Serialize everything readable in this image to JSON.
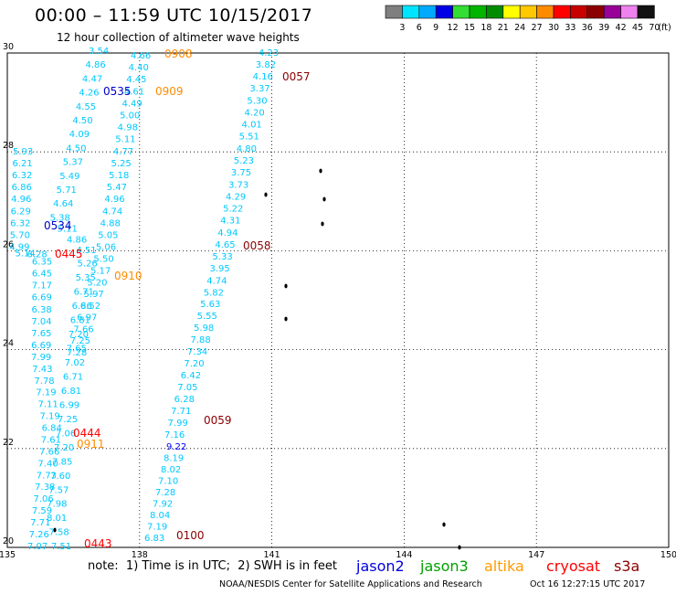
{
  "header": {
    "title": "00:00 – 11:59 UTC 10/15/2017",
    "subtitle": "12 hour collection of altimeter wave heights"
  },
  "colorbar": {
    "unit_label": "(ft)",
    "bins": [
      {
        "label": "3",
        "color": "#7f7f7f"
      },
      {
        "label": "6",
        "color": "#00e5ff"
      },
      {
        "label": "9",
        "color": "#00aaff"
      },
      {
        "label": "12",
        "color": "#0000e6"
      },
      {
        "label": "15",
        "color": "#33dd33"
      },
      {
        "label": "18",
        "color": "#00b400"
      },
      {
        "label": "21",
        "color": "#008c00"
      },
      {
        "label": "24",
        "color": "#ffff00"
      },
      {
        "label": "27",
        "color": "#ffc800"
      },
      {
        "label": "30",
        "color": "#ff8c00"
      },
      {
        "label": "33",
        "color": "#ff0000"
      },
      {
        "label": "36",
        "color": "#c80000"
      },
      {
        "label": "39",
        "color": "#8b0000"
      },
      {
        "label": "42",
        "color": "#990099"
      },
      {
        "label": "45",
        "color": "#ee82ee"
      },
      {
        "label": "70",
        "color": "#111111"
      }
    ]
  },
  "map": {
    "lon_ticks": [
      "135",
      "138",
      "141",
      "144",
      "147",
      "150"
    ],
    "lat_ticks": [
      "20",
      "22",
      "24",
      "26",
      "28",
      "30"
    ],
    "lon_range": [
      135,
      150
    ],
    "lat_range": [
      20,
      30
    ],
    "colors": {
      "light": "#00c8ff",
      "mid": "#0000ff",
      "grid": "#000000"
    },
    "tracks": [
      {
        "id": "A",
        "labels": [
          [
            "5.93",
            "light"
          ],
          [
            "6.21",
            "light"
          ],
          [
            "6.32",
            "light"
          ],
          [
            "6.86",
            "light"
          ],
          [
            "4.96",
            "light"
          ],
          [
            "6.29",
            "light"
          ],
          [
            "6.32",
            "light"
          ],
          [
            "5.70",
            "light"
          ],
          [
            "4.99",
            "light"
          ],
          [
            "5.14",
            "light"
          ],
          [
            "6.28",
            "light"
          ],
          [
            "6.35",
            "light"
          ],
          [
            "6.45",
            "light"
          ],
          [
            "7.17",
            "light"
          ],
          [
            "6.69",
            "light"
          ],
          [
            "6.38",
            "light"
          ],
          [
            "7.04",
            "light"
          ],
          [
            "7.65",
            "light"
          ],
          [
            "6.69",
            "light"
          ],
          [
            "7.99",
            "light"
          ],
          [
            "7.43",
            "light"
          ],
          [
            "7.78",
            "light"
          ],
          [
            "7.19",
            "light"
          ],
          [
            "7.11",
            "light"
          ],
          [
            "7.19",
            "light"
          ],
          [
            "6.84",
            "light"
          ],
          [
            "7.61",
            "light"
          ],
          [
            "7.66",
            "light"
          ],
          [
            "7.40",
            "light"
          ],
          [
            "7.73",
            "light"
          ],
          [
            "7.38",
            "light"
          ],
          [
            "7.06",
            "light"
          ],
          [
            "7.59",
            "light"
          ],
          [
            "7.71",
            "light"
          ],
          [
            "7.26",
            "light"
          ],
          [
            "7.07",
            "light"
          ]
        ]
      },
      {
        "id": "B",
        "labels": [
          [
            "3.54",
            "light"
          ],
          [
            "4.86",
            "light"
          ],
          [
            "4.47",
            "light"
          ],
          [
            "4.26",
            "light"
          ],
          [
            "4.55",
            "light"
          ],
          [
            "4.50",
            "light"
          ],
          [
            "4.09",
            "light"
          ],
          [
            "4.50",
            "light"
          ],
          [
            "5.37",
            "light"
          ],
          [
            "5.49",
            "light"
          ],
          [
            "5.71",
            "light"
          ],
          [
            "4.64",
            "light"
          ],
          [
            "5.38",
            "light"
          ],
          [
            "5.11",
            "light"
          ],
          [
            "4.86",
            "light"
          ],
          [
            "4.51",
            "light"
          ],
          [
            "5.26",
            "light"
          ],
          [
            "5.35",
            "light"
          ],
          [
            "6.71",
            "light"
          ],
          [
            "6.86",
            "light"
          ],
          [
            "6.81",
            "light"
          ],
          [
            "7.20",
            "light"
          ],
          [
            "7.65",
            "light"
          ],
          [
            "7.02",
            "light"
          ],
          [
            "6.71",
            "light"
          ],
          [
            "6.81",
            "light"
          ],
          [
            "6.99",
            "light"
          ],
          [
            "7.25",
            "light"
          ],
          [
            "7.06",
            "light"
          ],
          [
            "7.20",
            "light"
          ],
          [
            "7.85",
            "light"
          ],
          [
            "7.60",
            "light"
          ],
          [
            "7.57",
            "light"
          ],
          [
            "7.98",
            "light"
          ],
          [
            "8.01",
            "light"
          ],
          [
            "7.58",
            "light"
          ],
          [
            "7.51",
            "light"
          ]
        ]
      },
      {
        "id": "C",
        "labels": [
          [
            "4.66",
            "light"
          ],
          [
            "4.40",
            "light"
          ],
          [
            "4.45",
            "light"
          ],
          [
            "4.61",
            "light"
          ],
          [
            "4.49",
            "light"
          ],
          [
            "5.00",
            "light"
          ],
          [
            "4.98",
            "light"
          ],
          [
            "5.11",
            "light"
          ],
          [
            "4.77",
            "light"
          ],
          [
            "5.25",
            "light"
          ],
          [
            "5.18",
            "light"
          ],
          [
            "5.47",
            "light"
          ],
          [
            "4.96",
            "light"
          ],
          [
            "4.74",
            "light"
          ],
          [
            "4.88",
            "light"
          ],
          [
            "5.05",
            "light"
          ],
          [
            "5.06",
            "light"
          ],
          [
            "5.50",
            "light"
          ],
          [
            "5.17",
            "light"
          ],
          [
            "5.20",
            "light"
          ],
          [
            "5.97",
            "light"
          ],
          [
            "6.52",
            "light"
          ],
          [
            "6.97",
            "light"
          ],
          [
            "7.66",
            "light"
          ],
          [
            "7.25",
            "light"
          ],
          [
            "7.28",
            "light"
          ]
        ]
      },
      {
        "id": "D",
        "labels": [
          [
            "9.22",
            "mid"
          ],
          [
            "8.19",
            "light"
          ],
          [
            "8.02",
            "light"
          ],
          [
            "7.10",
            "light"
          ],
          [
            "7.28",
            "light"
          ],
          [
            "7.92",
            "light"
          ],
          [
            "8.04",
            "light"
          ],
          [
            "7.19",
            "light"
          ],
          [
            "6.83",
            "light"
          ]
        ]
      },
      {
        "id": "E",
        "labels": [
          [
            "4.23",
            "light"
          ],
          [
            "3.82",
            "light"
          ],
          [
            "4.16",
            "light"
          ],
          [
            "3.37",
            "light"
          ],
          [
            "5.30",
            "light"
          ],
          [
            "4.20",
            "light"
          ],
          [
            "4.01",
            "light"
          ],
          [
            "5.51",
            "light"
          ],
          [
            "4.80",
            "light"
          ],
          [
            "5.23",
            "light"
          ],
          [
            "3.75",
            "light"
          ],
          [
            "3.73",
            "light"
          ],
          [
            "4.29",
            "light"
          ],
          [
            "5.22",
            "light"
          ],
          [
            "4.31",
            "light"
          ],
          [
            "4.94",
            "light"
          ],
          [
            "4.65",
            "light"
          ],
          [
            "5.33",
            "light"
          ],
          [
            "3.95",
            "light"
          ],
          [
            "4.74",
            "light"
          ],
          [
            "5.82",
            "light"
          ],
          [
            "5.63",
            "light"
          ],
          [
            "5.55",
            "light"
          ],
          [
            "5.98",
            "light"
          ],
          [
            "7.88",
            "light"
          ],
          [
            "7.34",
            "light"
          ],
          [
            "7.20",
            "light"
          ],
          [
            "6.42",
            "light"
          ],
          [
            "7.05",
            "light"
          ],
          [
            "6.28",
            "light"
          ],
          [
            "7.71",
            "light"
          ],
          [
            "7.99",
            "light"
          ],
          [
            "7.16",
            "light"
          ]
        ]
      }
    ],
    "time_labels": [
      {
        "text": "0908",
        "color": "#ff8c00"
      },
      {
        "text": "0909",
        "color": "#ff8c00"
      },
      {
        "text": "0910",
        "color": "#ff8c00"
      },
      {
        "text": "0911",
        "color": "#ff8c00"
      },
      {
        "text": "0535",
        "color": "#0000cc"
      },
      {
        "text": "0534",
        "color": "#0000cc"
      },
      {
        "text": "0445",
        "color": "#ff0000"
      },
      {
        "text": "0444",
        "color": "#ff0000"
      },
      {
        "text": "0443",
        "color": "#ff0000"
      },
      {
        "text": "0057",
        "color": "#8b0000"
      },
      {
        "text": "0058",
        "color": "#8b0000"
      },
      {
        "text": "0059",
        "color": "#8b0000"
      },
      {
        "text": "0100",
        "color": "#8b0000"
      }
    ]
  },
  "footer": {
    "note": "note:  1) Time is in UTC;  2) SWH is in feet",
    "satellites": [
      {
        "name": "jason2",
        "color": "#0000dd"
      },
      {
        "name": "jason3",
        "color": "#00a000"
      },
      {
        "name": "altika",
        "color": "#ff9900"
      },
      {
        "name": "cryosat",
        "color": "#ff0000"
      },
      {
        "name": "s3a",
        "color": "#8b0000"
      }
    ],
    "credit": "NOAA/NESDIS Center for Satellite Applications and Research",
    "timestamp": "Oct 16 12:27:15 UTC 2017"
  }
}
